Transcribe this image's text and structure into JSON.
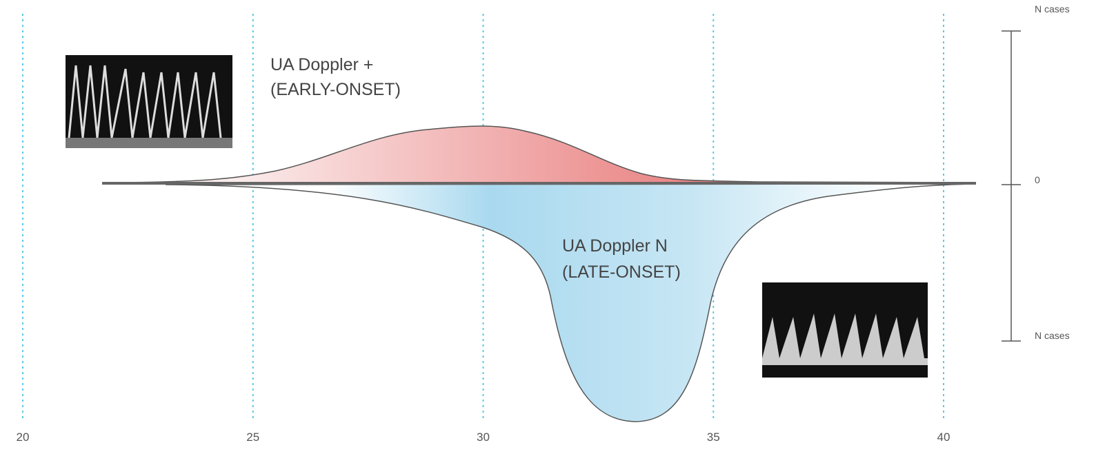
{
  "x_axis": {
    "ticks": [
      20,
      25,
      30,
      35,
      40
    ]
  },
  "y_scale": {
    "top_label": "N cases",
    "zero_label": "0",
    "bottom_label": "N cases"
  },
  "groups": [
    {
      "label_lines": [
        "UA Doppler +",
        "(EARLY-ONSET)"
      ]
    },
    {
      "label_lines": [
        "UA Doppler N",
        "(LATE-ONSET)"
      ]
    }
  ]
}
